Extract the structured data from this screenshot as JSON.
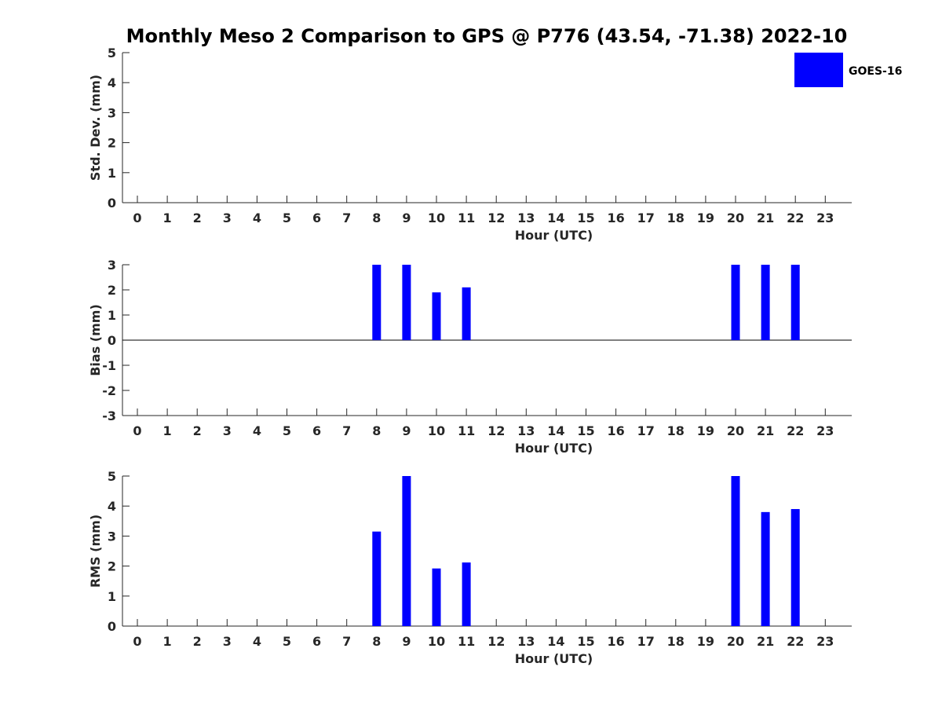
{
  "title": "Monthly Meso 2 Comparison to GPS @ P776 (43.54, -71.38) 2022-10",
  "legend": {
    "label": "GOES-16",
    "color": "#0000ff",
    "placement": "top-right"
  },
  "chart_data": [
    {
      "type": "bar",
      "ylabel": "Std. Dev. (mm)",
      "xlabel": "Hour (UTC)",
      "ylim": [
        0,
        5
      ],
      "yticks": [
        0,
        1,
        2,
        3,
        4,
        5
      ],
      "xticks": [
        0,
        1,
        2,
        3,
        4,
        5,
        6,
        7,
        8,
        9,
        10,
        11,
        12,
        13,
        14,
        15,
        16,
        17,
        18,
        19,
        20,
        21,
        22,
        23
      ],
      "series": [
        {
          "name": "GOES-16",
          "color": "#0000ff",
          "x": [],
          "values": []
        }
      ],
      "grid": false
    },
    {
      "type": "bar",
      "ylabel": "Bias (mm)",
      "xlabel": "Hour (UTC)",
      "ylim": [
        -3,
        3
      ],
      "yticks": [
        -3,
        -2,
        -1,
        0,
        1,
        2,
        3
      ],
      "xticks": [
        0,
        1,
        2,
        3,
        4,
        5,
        6,
        7,
        8,
        9,
        10,
        11,
        12,
        13,
        14,
        15,
        16,
        17,
        18,
        19,
        20,
        21,
        22,
        23
      ],
      "zero_line": true,
      "series": [
        {
          "name": "GOES-16",
          "color": "#0000ff",
          "x": [
            8,
            9,
            10,
            11,
            20,
            21,
            22
          ],
          "values": [
            3.0,
            3.0,
            1.9,
            2.1,
            3.0,
            3.0,
            3.0
          ]
        }
      ],
      "grid": false
    },
    {
      "type": "bar",
      "ylabel": "RMS (mm)",
      "xlabel": "Hour (UTC)",
      "ylim": [
        0,
        5
      ],
      "yticks": [
        0,
        1,
        2,
        3,
        4,
        5
      ],
      "xticks": [
        0,
        1,
        2,
        3,
        4,
        5,
        6,
        7,
        8,
        9,
        10,
        11,
        12,
        13,
        14,
        15,
        16,
        17,
        18,
        19,
        20,
        21,
        22,
        23
      ],
      "series": [
        {
          "name": "GOES-16",
          "color": "#0000ff",
          "x": [
            8,
            9,
            10,
            11,
            20,
            21,
            22
          ],
          "values": [
            3.15,
            5.0,
            1.92,
            2.12,
            5.0,
            3.8,
            3.9
          ]
        }
      ],
      "grid": false
    }
  ]
}
